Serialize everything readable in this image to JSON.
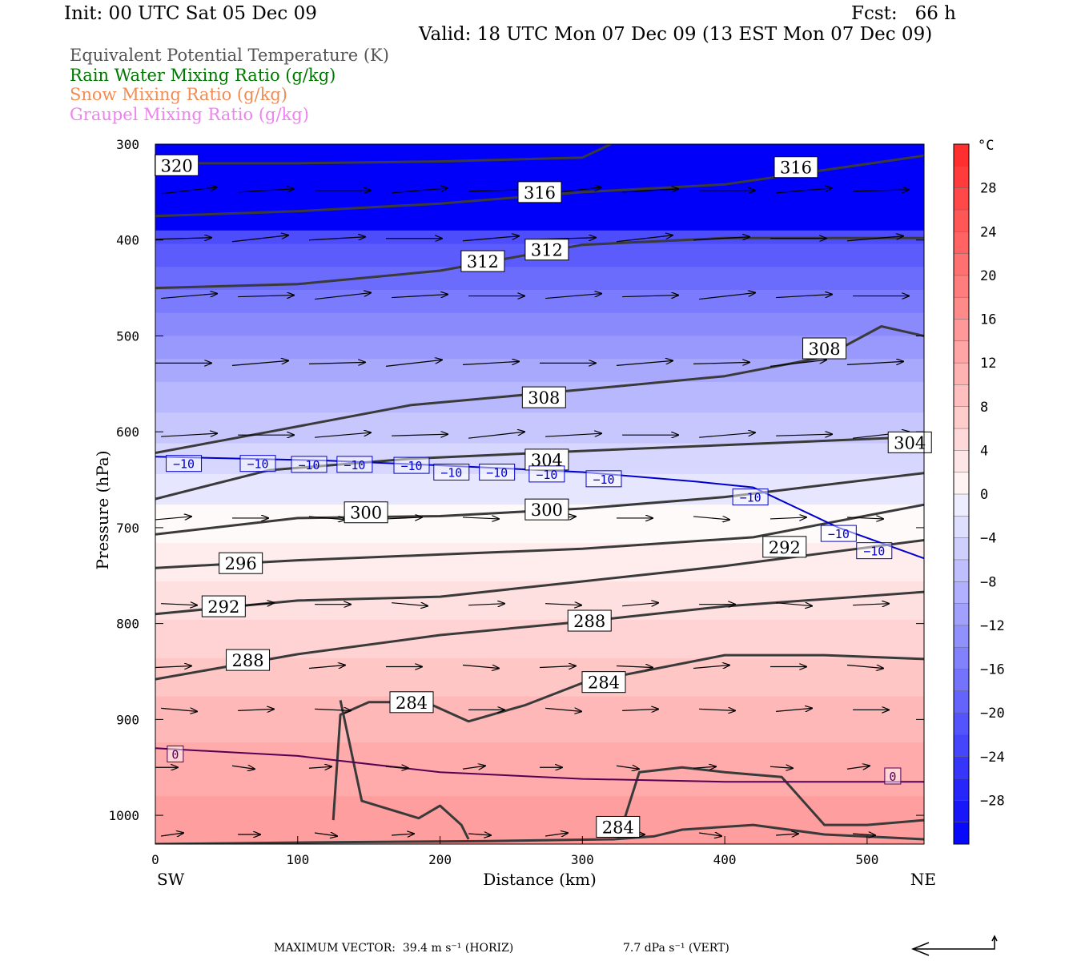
{
  "header": {
    "init": "Init: 00 UTC Sat 05 Dec 09",
    "fcst": "Fcst:   66 h",
    "valid": "Valid: 18 UTC Mon 07 Dec 09 (13 EST Mon 07 Dec 09)"
  },
  "legend": [
    {
      "label": "Equivalent Potential Temperature (K)",
      "color": "#555555"
    },
    {
      "label": "Rain Water Mixing Ratio (g/kg)",
      "color": "#007700"
    },
    {
      "label": "Snow Mixing Ratio (g/kg)",
      "color": "#f08c55"
    },
    {
      "label": "Graupel Mixing Ratio (g/kg)",
      "color": "#ee82ee"
    }
  ],
  "footer": {
    "max_vector_horiz": "MAXIMUM VECTOR:  39.4 m s⁻¹ (HORIZ)",
    "max_vector_vert": "7.7 dPa s⁻¹ (VERT)"
  },
  "chart_data": {
    "type": "cross-section",
    "xlabel": "Distance (km)",
    "ylabel": "Pressure (hPa)",
    "x_ticks": [
      "0",
      "100",
      "200",
      "300",
      "400",
      "500"
    ],
    "y_ticks": [
      "300",
      "400",
      "500",
      "600",
      "700",
      "800",
      "900",
      "1000"
    ],
    "xlim": [
      0,
      540
    ],
    "ylim": [
      300,
      1030
    ],
    "y_inverted": true,
    "endpoint_left": "SW",
    "endpoint_right": "NE",
    "colorbar": {
      "unit": "°C",
      "labels": [
        "28",
        "24",
        "20",
        "16",
        "12",
        "8",
        "4",
        "0",
        "−4",
        "−8",
        "−12",
        "−16",
        "−20",
        "−24",
        "−28"
      ],
      "label_values": [
        28,
        24,
        20,
        16,
        12,
        8,
        4,
        0,
        -4,
        -8,
        -12,
        -16,
        -20,
        -24,
        -28
      ],
      "range": [
        -32,
        32
      ],
      "step": 2
    },
    "theta_e_contours": [
      {
        "label": "320",
        "points": [
          [
            0,
            320
          ],
          [
            100,
            320
          ],
          [
            200,
            318
          ],
          [
            300,
            314
          ],
          [
            320,
            300
          ]
        ],
        "labels": [
          [
            15,
            322
          ]
        ]
      },
      {
        "label": "316",
        "points": [
          [
            0,
            375
          ],
          [
            100,
            370
          ],
          [
            200,
            362
          ],
          [
            300,
            350
          ],
          [
            400,
            342
          ],
          [
            540,
            312
          ]
        ],
        "labels": [
          [
            270,
            350
          ],
          [
            450,
            324
          ]
        ]
      },
      {
        "label": "312",
        "points": [
          [
            0,
            450
          ],
          [
            100,
            446
          ],
          [
            200,
            432
          ],
          [
            300,
            405
          ],
          [
            400,
            398
          ],
          [
            540,
            398
          ]
        ],
        "labels": [
          [
            230,
            422
          ],
          [
            275,
            410
          ]
        ]
      },
      {
        "label": "308",
        "points": [
          [
            0,
            622
          ],
          [
            80,
            600
          ],
          [
            180,
            572
          ],
          [
            300,
            556
          ],
          [
            400,
            542
          ],
          [
            470,
            522
          ],
          [
            510,
            490
          ],
          [
            540,
            500
          ]
        ],
        "labels": [
          [
            273,
            564
          ],
          [
            470,
            513
          ]
        ]
      },
      {
        "label": "304",
        "points": [
          [
            0,
            670
          ],
          [
            80,
            640
          ],
          [
            180,
            628
          ],
          [
            300,
            620
          ],
          [
            430,
            612
          ],
          [
            540,
            605
          ]
        ],
        "labels": [
          [
            275,
            629
          ],
          [
            530,
            611
          ]
        ]
      },
      {
        "label": "300",
        "points": [
          [
            0,
            707
          ],
          [
            100,
            690
          ],
          [
            200,
            688
          ],
          [
            300,
            680
          ],
          [
            400,
            668
          ],
          [
            540,
            643
          ]
        ],
        "labels": [
          [
            148,
            684
          ],
          [
            275,
            681
          ]
        ]
      },
      {
        "label": "296",
        "points": [
          [
            0,
            742
          ],
          [
            100,
            734
          ],
          [
            200,
            728
          ],
          [
            300,
            722
          ],
          [
            420,
            710
          ],
          [
            540,
            676
          ]
        ],
        "labels": [
          [
            60,
            737
          ]
        ]
      },
      {
        "label": "292",
        "points": [
          [
            0,
            790
          ],
          [
            100,
            776
          ],
          [
            200,
            772
          ],
          [
            300,
            756
          ],
          [
            400,
            740
          ],
          [
            540,
            713
          ]
        ],
        "labels": [
          [
            48,
            782
          ],
          [
            442,
            720
          ]
        ]
      },
      {
        "label": "288",
        "points": [
          [
            0,
            858
          ],
          [
            100,
            832
          ],
          [
            200,
            812
          ],
          [
            300,
            798
          ],
          [
            400,
            782
          ],
          [
            540,
            767
          ]
        ],
        "labels": [
          [
            65,
            838
          ],
          [
            305,
            797
          ]
        ]
      },
      {
        "label": "284",
        "points": [
          [
            0,
            1030
          ],
          [
            130,
            1028
          ],
          [
            230,
            1027
          ],
          [
            322,
            1025
          ],
          [
            350,
            1022
          ],
          [
            370,
            1015
          ],
          [
            420,
            1010
          ],
          [
            470,
            1020
          ],
          [
            540,
            1025
          ]
        ],
        "labels": [
          [
            325,
            1012
          ]
        ]
      },
      {
        "label": "284",
        "points": [
          [
            125,
            1005
          ],
          [
            130,
            895
          ],
          [
            150,
            882
          ],
          [
            190,
            882
          ],
          [
            220,
            902
          ],
          [
            260,
            885
          ],
          [
            300,
            862
          ],
          [
            400,
            833
          ],
          [
            470,
            833
          ],
          [
            540,
            837
          ]
        ],
        "labels": [
          [
            180,
            882
          ],
          [
            315,
            861
          ]
        ]
      },
      {
        "label": "284",
        "points": [
          [
            130,
            880
          ],
          [
            145,
            985
          ],
          [
            185,
            1003
          ],
          [
            200,
            990
          ],
          [
            215,
            1010
          ],
          [
            220,
            1025
          ]
        ],
        "labels": []
      },
      {
        "label": "284",
        "points": [
          [
            325,
            1025
          ],
          [
            340,
            955
          ],
          [
            370,
            950
          ],
          [
            400,
            955
          ],
          [
            440,
            960
          ],
          [
            470,
            1010
          ],
          [
            500,
            1010
          ],
          [
            540,
            1005
          ]
        ],
        "labels": []
      }
    ],
    "temperature_contours": [
      {
        "label": "-10",
        "color": "#0000cc",
        "points": [
          [
            0,
            626
          ],
          [
            120,
            630
          ],
          [
            200,
            635
          ],
          [
            300,
            642
          ],
          [
            380,
            652
          ],
          [
            420,
            658
          ],
          [
            480,
            700
          ],
          [
            540,
            732
          ]
        ],
        "labels": [
          [
            20,
            633
          ],
          [
            72,
            633
          ],
          [
            108,
            634
          ],
          [
            140,
            634
          ],
          [
            180,
            635
          ],
          [
            208,
            642
          ],
          [
            240,
            642
          ],
          [
            275,
            644
          ],
          [
            315,
            649
          ],
          [
            418,
            668
          ],
          [
            480,
            706
          ],
          [
            505,
            724
          ]
        ]
      },
      {
        "label": "0",
        "color": "#550055",
        "points": [
          [
            0,
            930
          ],
          [
            100,
            938
          ],
          [
            200,
            955
          ],
          [
            300,
            962
          ],
          [
            400,
            965
          ],
          [
            540,
            965
          ]
        ],
        "labels": [
          [
            14,
            936
          ],
          [
            518,
            959
          ]
        ]
      }
    ],
    "vector_rows_hPa": [
      350,
      400,
      460,
      530,
      605,
      690,
      780,
      845,
      890,
      950,
      1020
    ],
    "maximum_vector": {
      "horiz_ms": 39.4,
      "vert_dPa_s": 7.7
    }
  }
}
